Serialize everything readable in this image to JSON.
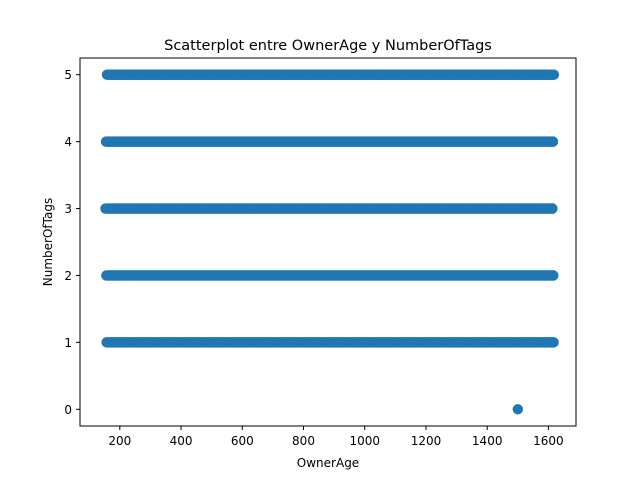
{
  "chart_data": {
    "type": "scatter",
    "title": "Scatterplot entre OwnerAge y NumberOfTags",
    "xlabel": "OwnerAge",
    "ylabel": "NumberOfTags",
    "xlim": [
      70,
      1690
    ],
    "ylim": [
      -0.25,
      5.25
    ],
    "xticks": [
      200,
      400,
      600,
      800,
      1000,
      1200,
      1400,
      1600
    ],
    "yticks": [
      0,
      1,
      2,
      3,
      4,
      5
    ],
    "grid": false,
    "legend": "none",
    "color": "#1f77b4",
    "series": [
      {
        "points_description_hidden": true,
        "bands": [
          {
            "y": 5,
            "x_range": [
              158,
              1620
            ]
          },
          {
            "y": 4,
            "x_range": [
              155,
              1620
            ]
          },
          {
            "y": 3,
            "x_range": [
              153,
              1620
            ]
          },
          {
            "y": 2,
            "x_range": [
              156,
              1620
            ]
          },
          {
            "y": 1,
            "x_range": [
              157,
              1620
            ]
          }
        ],
        "points": [
          {
            "x": 1500,
            "y": 0
          }
        ]
      }
    ]
  }
}
